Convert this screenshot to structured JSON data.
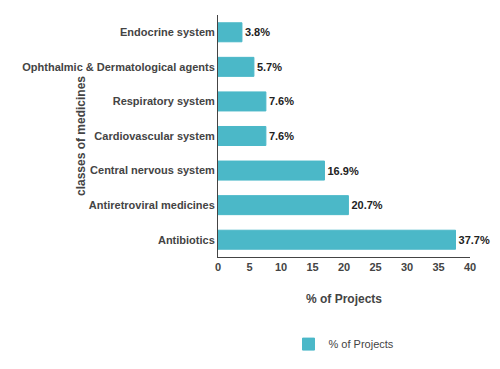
{
  "chart_data": {
    "type": "bar",
    "orientation": "horizontal",
    "categories": [
      "Antibiotics",
      "Antiretroviral medicines",
      "Central nervous system",
      "Cardiovascular system",
      "Respiratory system",
      "Ophthalmic & Dermatological agents",
      "Endocrine system"
    ],
    "series": [
      {
        "name": "% of Projects",
        "color": "#4BB8C8",
        "values": [
          37.7,
          20.7,
          16.9,
          7.6,
          7.6,
          5.7,
          3.8
        ],
        "value_labels": [
          "37.7%",
          "20.7%",
          "16.9%",
          "7.6%",
          "7.6%",
          "5.7%",
          "3.8%"
        ]
      }
    ],
    "xlabel": "% of Projects",
    "ylabel": "classes of medicines",
    "xlim": [
      0,
      40
    ],
    "xticks": [
      0,
      5,
      10,
      15,
      20,
      25,
      30,
      35,
      40
    ],
    "data_labels": true,
    "legend": "bottom",
    "grid": false
  }
}
